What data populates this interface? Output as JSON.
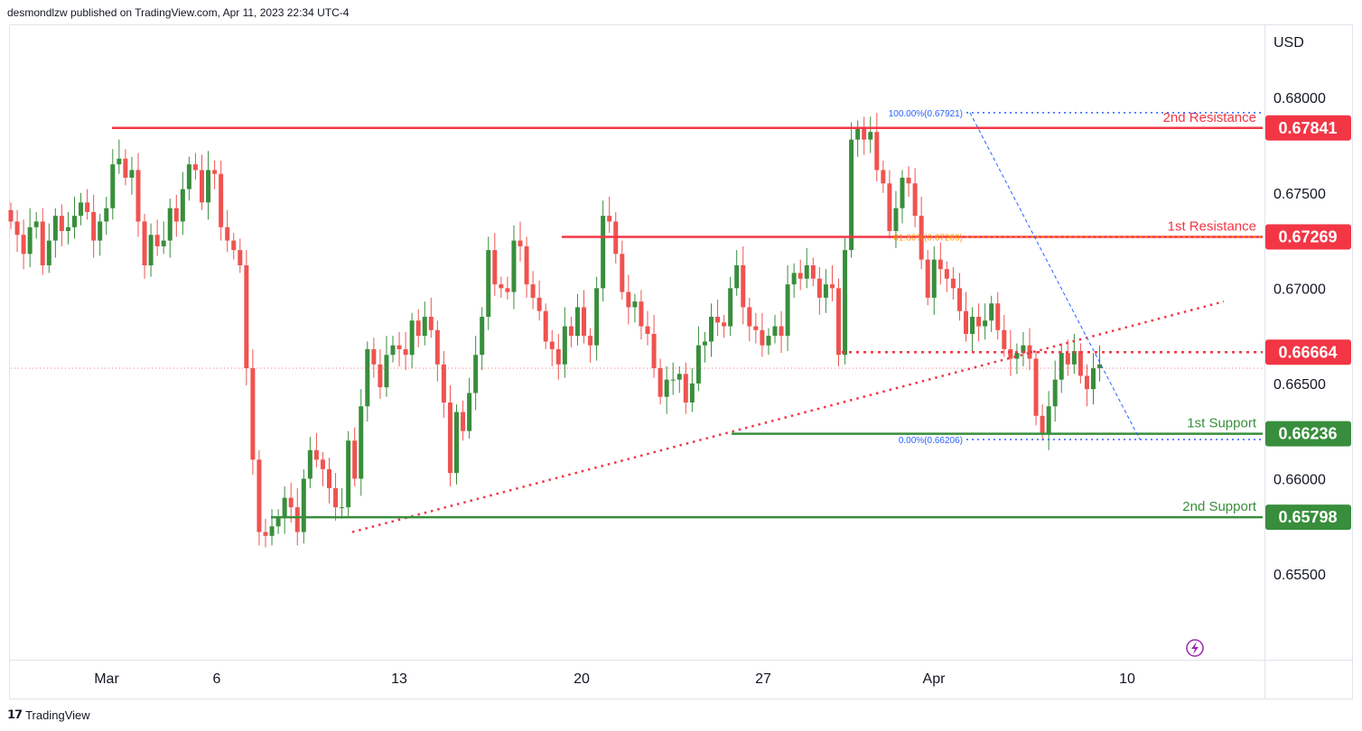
{
  "header": {
    "published_text": "desmondlzw published on TradingView.com, Apr 11, 2023 22:34 UTC-4"
  },
  "footer": {
    "brand": "TradingView"
  },
  "colors": {
    "up": "#388e3c",
    "down": "#ef5350",
    "resistance": "#f23645",
    "support": "#388e3c",
    "fib": "#2962ff",
    "fib_618": "#ff9800",
    "trend": "#f23645"
  },
  "chart_data": {
    "type": "candlestick",
    "currency": "USD",
    "ylim": [
      0.6505,
      0.6838
    ],
    "y_ticks": [
      "0.68000",
      "0.67500",
      "0.67000",
      "0.66500",
      "0.66000",
      "0.65500"
    ],
    "y_tick_values": [
      0.68,
      0.675,
      0.67,
      0.665,
      0.66,
      0.655
    ],
    "x_ticks": [
      "Mar",
      "6",
      "13",
      "20",
      "27",
      "Apr",
      "10"
    ],
    "levels": [
      {
        "name": "2nd Resistance",
        "value": 0.67841,
        "label": "0.67841",
        "kind": "resistance",
        "style": "solid"
      },
      {
        "name": "1st Resistance",
        "value": 0.67269,
        "label": "0.67269",
        "kind": "resistance",
        "style": "solid"
      },
      {
        "name": "",
        "value": 0.66664,
        "label": "0.66664",
        "kind": "resistance",
        "style": "dotted"
      },
      {
        "name": "1st Support",
        "value": 0.66236,
        "label": "0.66236",
        "kind": "support",
        "style": "solid"
      },
      {
        "name": "2nd Support",
        "value": 0.65798,
        "label": "0.65798",
        "kind": "support",
        "style": "solid"
      }
    ],
    "fib_labels": [
      {
        "text": "100.00%(0.67921)",
        "value": 0.67921
      },
      {
        "text": "61.80%(0.67269)",
        "value": 0.67269
      },
      {
        "text": "0.00%(0.66206)",
        "value": 0.66206
      }
    ],
    "last_price": 0.6658,
    "closes": [
      0.6735,
      0.6728,
      0.6718,
      0.6732,
      0.6735,
      0.6712,
      0.6725,
      0.6738,
      0.673,
      0.6732,
      0.6738,
      0.6745,
      0.674,
      0.6725,
      0.6735,
      0.6742,
      0.6765,
      0.6768,
      0.6758,
      0.6762,
      0.6735,
      0.6712,
      0.6728,
      0.6722,
      0.6725,
      0.6742,
      0.6735,
      0.6752,
      0.6765,
      0.6762,
      0.6745,
      0.6762,
      0.676,
      0.6732,
      0.6725,
      0.672,
      0.6712,
      0.6658,
      0.661,
      0.6572,
      0.657,
      0.6575,
      0.658,
      0.659,
      0.6585,
      0.6572,
      0.66,
      0.6615,
      0.661,
      0.6605,
      0.6595,
      0.6585,
      0.6585,
      0.662,
      0.66,
      0.6638,
      0.6668,
      0.666,
      0.6648,
      0.6665,
      0.667,
      0.6668,
      0.6665,
      0.6683,
      0.6675,
      0.6685,
      0.6678,
      0.666,
      0.664,
      0.6603,
      0.6635,
      0.6625,
      0.6645,
      0.6665,
      0.6685,
      0.672,
      0.6702,
      0.67,
      0.6698,
      0.6725,
      0.6722,
      0.6702,
      0.6695,
      0.6688,
      0.6672,
      0.6668,
      0.666,
      0.668,
      0.6675,
      0.669,
      0.6675,
      0.667,
      0.67,
      0.6738,
      0.6735,
      0.6718,
      0.6698,
      0.669,
      0.6693,
      0.668,
      0.6676,
      0.6658,
      0.6643,
      0.6652,
      0.6652,
      0.6655,
      0.664,
      0.665,
      0.667,
      0.6672,
      0.6685,
      0.6682,
      0.668,
      0.67,
      0.6712,
      0.669,
      0.668,
      0.6678,
      0.667,
      0.6675,
      0.668,
      0.6675,
      0.6702,
      0.6708,
      0.6705,
      0.6712,
      0.6705,
      0.6695,
      0.6702,
      0.67,
      0.6665,
      0.672,
      0.6778,
      0.6784,
      0.6778,
      0.6782,
      0.6762,
      0.6755,
      0.673,
      0.6742,
      0.6758,
      0.6755,
      0.6738,
      0.6715,
      0.6695,
      0.6715,
      0.671,
      0.6705,
      0.67,
      0.6688,
      0.6676,
      0.6685,
      0.668,
      0.6683,
      0.6692,
      0.6678,
      0.6668,
      0.6663,
      0.6666,
      0.667,
      0.6663,
      0.6633,
      0.6624,
      0.6638,
      0.6652,
      0.6666,
      0.666,
      0.6667,
      0.6654,
      0.6647,
      0.6658,
      0.666
    ]
  }
}
